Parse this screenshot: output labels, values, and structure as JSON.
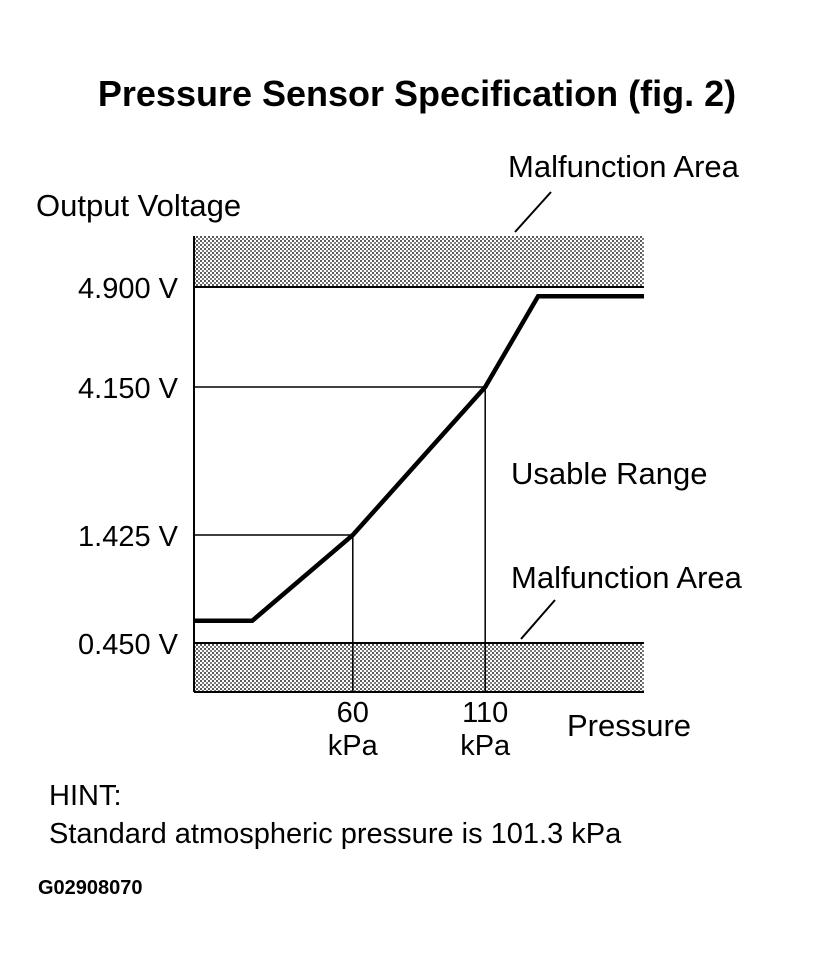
{
  "title": "Pressure Sensor Specification (fig. 2)",
  "chart_data": {
    "type": "line",
    "ylabel": "Output Voltage",
    "xlabel": "Pressure",
    "y_ticks": [
      {
        "label": "4.900 V",
        "value": 4.9
      },
      {
        "label": "4.150 V",
        "value": 4.15
      },
      {
        "label": "1.425 V",
        "value": 1.425
      },
      {
        "label": "0.450 V",
        "value": 0.45
      }
    ],
    "x_ticks": [
      {
        "value_label": "60",
        "unit_label": "kPa",
        "value": 60
      },
      {
        "value_label": "110",
        "unit_label": "kPa",
        "value": 110
      }
    ],
    "series": [
      {
        "x": [
          0,
          22,
          60,
          110,
          130,
          170
        ],
        "y": [
          0.65,
          0.65,
          1.425,
          4.15,
          4.83,
          4.83
        ]
      }
    ],
    "xlim": [
      0,
      170
    ],
    "annotations": {
      "upper_band": "Malfunction Area",
      "lower_band": "Malfunction Area",
      "usable": "Usable Range"
    },
    "colors": {
      "line": "#000000",
      "band": "#bdbdbd"
    }
  },
  "hint": {
    "label": "HINT:",
    "text": "Standard atmospheric pressure is 101.3 kPa"
  },
  "figure_code": "G02908070"
}
